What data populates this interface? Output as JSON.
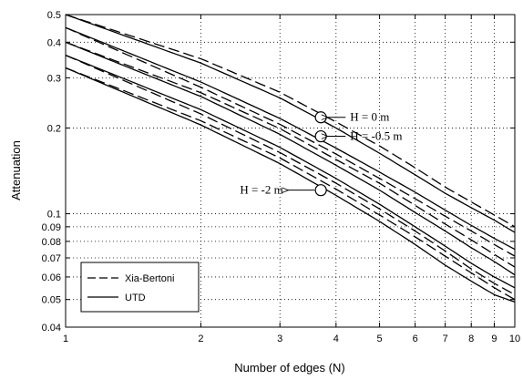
{
  "chart_data": {
    "type": "line",
    "xlabel": "Number of edges (N)",
    "ylabel": "Attenuation",
    "xscale": "log",
    "yscale": "log",
    "xlim": [
      1,
      10
    ],
    "ylim": [
      0.04,
      0.5
    ],
    "grid": true,
    "legend_position": "bottom-left",
    "x_ticks": [
      1,
      2,
      3,
      4,
      5,
      6,
      7,
      8,
      9,
      10
    ],
    "x_tick_labels": [
      "1",
      "2",
      "3",
      "4",
      "5",
      "6",
      "7",
      "8",
      "9",
      "10"
    ],
    "y_ticks": [
      0.04,
      0.05,
      0.06,
      0.07,
      0.08,
      0.09,
      0.1,
      0.2,
      0.3,
      0.4,
      0.5
    ],
    "y_tick_labels": [
      "0.04",
      "0.05",
      "0.06",
      "0.07",
      "0.08",
      "0.09",
      "0.1",
      "0.2",
      "0.3",
      "0.4",
      "0.5"
    ],
    "x": [
      1,
      2,
      3,
      4,
      5,
      6,
      7,
      8,
      9,
      10
    ],
    "legend": [
      {
        "label": "Xia-Bertoni",
        "style": "dashed"
      },
      {
        "label": "UTD",
        "style": "solid"
      }
    ],
    "series": [
      {
        "style": "solid",
        "values": [
          0.5,
          0.338,
          0.255,
          0.2,
          0.163,
          0.137,
          0.118,
          0.105,
          0.095,
          0.086
        ]
      },
      {
        "style": "solid",
        "values": [
          0.45,
          0.29,
          0.216,
          0.17,
          0.14,
          0.119,
          0.103,
          0.091,
          0.082,
          0.075
        ]
      },
      {
        "style": "solid",
        "values": [
          0.4,
          0.258,
          0.19,
          0.148,
          0.121,
          0.101,
          0.087,
          0.076,
          0.068,
          0.061
        ]
      },
      {
        "style": "solid",
        "values": [
          0.36,
          0.232,
          0.171,
          0.133,
          0.108,
          0.09,
          0.077,
          0.067,
          0.06,
          0.055
        ]
      },
      {
        "style": "solid",
        "values": [
          0.325,
          0.205,
          0.15,
          0.116,
          0.094,
          0.078,
          0.066,
          0.058,
          0.052,
          0.049
        ]
      },
      {
        "style": "dashed",
        "values": [
          0.5,
          0.35,
          0.267,
          0.21,
          0.173,
          0.145,
          0.124,
          0.11,
          0.099,
          0.09
        ]
      },
      {
        "style": "dashed",
        "values": [
          0.45,
          0.278,
          0.206,
          0.162,
          0.133,
          0.113,
          0.098,
          0.087,
          0.078,
          0.071
        ]
      },
      {
        "style": "dashed",
        "values": [
          0.4,
          0.266,
          0.199,
          0.155,
          0.128,
          0.107,
          0.092,
          0.081,
          0.072,
          0.065
        ]
      },
      {
        "style": "dashed",
        "values": [
          0.36,
          0.224,
          0.164,
          0.128,
          0.104,
          0.087,
          0.074,
          0.064,
          0.057,
          0.052
        ]
      },
      {
        "style": "dashed",
        "values": [
          0.325,
          0.212,
          0.157,
          0.122,
          0.099,
          0.083,
          0.071,
          0.062,
          0.055,
          0.05
        ]
      }
    ],
    "annotations": [
      {
        "text": "H = 0 m",
        "point": [
          3.7,
          0.218
        ],
        "label_at": [
          4.3,
          0.218
        ],
        "side": "right"
      },
      {
        "text": "H = -0.5 m",
        "point": [
          3.7,
          0.187
        ],
        "label_at": [
          4.3,
          0.187
        ],
        "side": "right"
      },
      {
        "text": "H = -2 m",
        "point": [
          3.7,
          0.121
        ],
        "label_at": [
          3.05,
          0.121
        ],
        "side": "left"
      }
    ]
  }
}
